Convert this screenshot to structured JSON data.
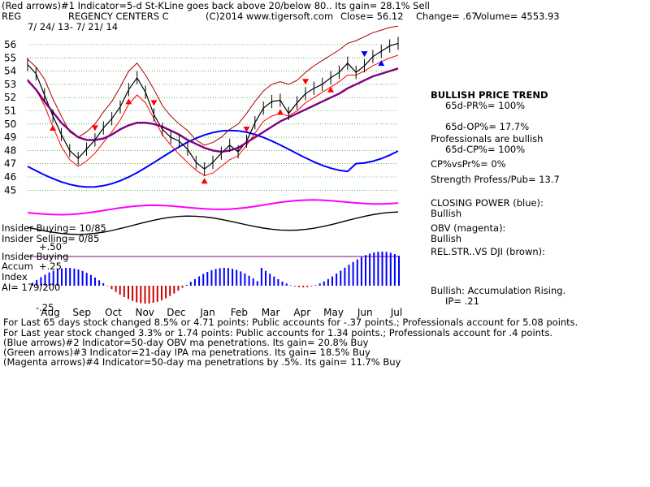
{
  "header": {
    "line1": "(Red arrows)#1 Indicator=5-d St-KLine goes back above 20/below 80.. Its gain= 28.1% Sell",
    "ticker": "REG",
    "company": "REGENCY CENTERS C",
    "copyright": "(C)2014 www.tigersoft.com",
    "close": "Close= 56.12",
    "change": "Change= .67",
    "volume": "Volume= 4553.93",
    "date_range": "7/ 24/ 13- 7/ 21/ 14"
  },
  "side_panel": {
    "trend_title": "BULLISH PRICE TREND",
    "pr": "65d-PR%= 100%",
    "op": "65d-OP%= 17.7%",
    "prof_line1": "Professionals are bullish",
    "cp": "65d-CP%= 100%",
    "cpvspr": "CP%vsPr%= 0%",
    "strength": "Strength Profess/Pub= 13.7",
    "closing_power_label": "CLOSING POWER (blue):",
    "closing_power_value": "Bullish",
    "obv_label": "OBV (magenta):",
    "obv_value": "Bullish",
    "relstr": "REL.STR..VS DJI (brown):",
    "accum_label": "Bullish: Accumulation Rising.",
    "ip": "IP= .21"
  },
  "insider": {
    "buying": "Insider Buying= 10/85",
    "selling": "Insider Selling= 0/85",
    "plus50": "+.50",
    "insider_buying2": "Insider Buying",
    "accum": "Accum",
    "plus25": "+.25",
    "index": "Index",
    "ai": "AI= 179/200",
    "minus25": "-.25"
  },
  "footer": {
    "line1": "For Last 65 days stock changed 8.5% or 4.71 points: Public accounts for -.37 points.; Professionals account for 5.08 points.",
    "line2": "For Last year stock changed 3.3% or 1.74 points: Public accounts for 1.34 points.; Professionals account for .4 points.",
    "line3": "(Blue arrows)#2 Indicator=50-day OBV ma penetrations. Its gain= 20.8% Buy",
    "line4": "(Green arrows)#3 Indicator=21-day IPA ma penetrations. Its gain= 18.5% Buy",
    "line5": "(Magenta arrows)#4 Indicator=50-day ma penetrations by .5%. Its gain= 11.7% Buy"
  },
  "colors": {
    "price": "#000000",
    "upper_band": "#aa0000",
    "inner_band": "#ff0000",
    "ma": "#800080",
    "closing_power": "#0000ff",
    "obv": "#ff00ff",
    "accum_pos": "#0000ff",
    "accum_neg": "#cc0000",
    "grid": "#008000",
    "sell_arrow": "#ff0000",
    "buy_arrow": "#ff0000",
    "blue_arrow": "#0000ff"
  },
  "chart_data": {
    "type": "line",
    "ylabel": "",
    "y_ticks": [
      "56",
      "55",
      "54",
      "53",
      "52",
      "51",
      "50",
      "49",
      "48",
      "47",
      "46",
      "45"
    ],
    "ylim": [
      44,
      57
    ],
    "x_labels": [
      "Aug",
      "Sep",
      "Oct",
      "Nov",
      "Dec",
      "Jan",
      "Feb",
      "Mar",
      "Apr",
      "May",
      "Jun",
      "Jul"
    ],
    "series": [
      {
        "values": [
          54.5,
          53.8,
          52.2,
          50.6,
          49.2,
          48.0,
          47.4,
          48.1,
          48.8,
          49.7,
          50.4,
          51.3,
          52.6,
          53.5,
          52.4,
          50.7,
          49.6,
          49.0,
          48.7,
          48.1,
          47.1,
          46.6,
          47.1,
          47.8,
          48.4,
          47.9,
          48.7,
          50.1,
          51.2,
          51.7,
          51.8,
          50.8,
          51.6,
          52.3,
          52.7,
          53.0,
          53.5,
          53.9,
          54.6,
          53.9,
          54.4,
          55.1,
          55.5,
          55.9,
          56.1
        ]
      },
      {
        "values": [
          54.9,
          54.3,
          53.4,
          51.9,
          50.6,
          49.4,
          49.0,
          49.4,
          50.0,
          50.9,
          51.7,
          52.8,
          54.0,
          54.6,
          53.7,
          52.6,
          51.4,
          50.6,
          50.0,
          49.5,
          48.8,
          48.4,
          48.6,
          49.0,
          49.6,
          50.0,
          50.8,
          51.7,
          52.5,
          53.0,
          53.2,
          53.0,
          53.3,
          53.9,
          54.4,
          54.8,
          55.2,
          55.6,
          56.1,
          56.3,
          56.6,
          56.9,
          57.1,
          57.3,
          57.4
        ]
      },
      {
        "values": [
          53.4,
          52.6,
          51.4,
          49.8,
          48.3,
          47.3,
          46.8,
          47.2,
          47.8,
          48.6,
          49.4,
          50.3,
          51.5,
          52.2,
          51.6,
          50.4,
          49.2,
          48.4,
          47.7,
          47.1,
          46.5,
          46.1,
          46.3,
          46.8,
          47.3,
          47.6,
          48.4,
          49.3,
          50.2,
          50.6,
          50.8,
          50.6,
          51.0,
          51.6,
          52.0,
          52.4,
          52.8,
          53.2,
          53.7,
          53.7,
          54.0,
          54.4,
          54.7,
          55.0,
          55.2
        ]
      },
      {
        "values": [
          53.3,
          52.6,
          51.7,
          50.9,
          50.1,
          49.5,
          49.0,
          48.8,
          48.8,
          48.9,
          49.2,
          49.6,
          49.9,
          50.1,
          50.1,
          50.0,
          49.8,
          49.5,
          49.2,
          48.8,
          48.5,
          48.2,
          48.0,
          47.9,
          48.0,
          48.2,
          48.6,
          49.0,
          49.4,
          49.8,
          50.2,
          50.5,
          50.8,
          51.1,
          51.4,
          51.7,
          52.0,
          52.3,
          52.7,
          53.0,
          53.3,
          53.6,
          53.8,
          54.0,
          54.2
        ]
      }
    ]
  }
}
